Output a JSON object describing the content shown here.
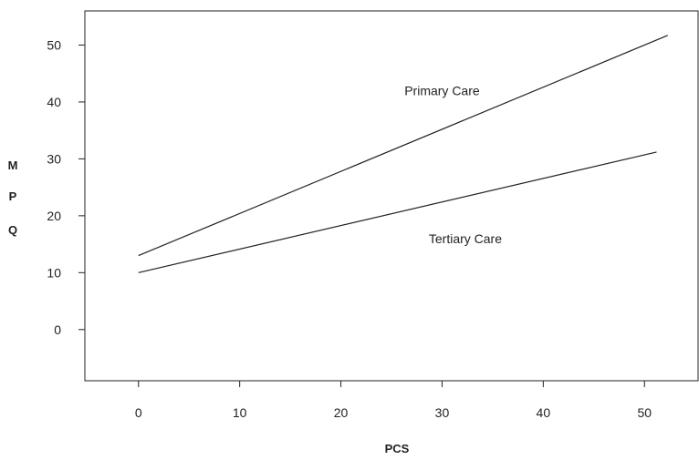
{
  "chart_data": {
    "type": "line",
    "title": "",
    "xlabel": "PCS",
    "ylabel": "M P Q",
    "ylabel_letters": [
      "M",
      "P",
      "Q"
    ],
    "xlim": [
      -5.3,
      55.3
    ],
    "ylim": [
      -9,
      56
    ],
    "x_ticks": [
      0,
      10,
      20,
      30,
      40,
      50
    ],
    "y_ticks": [
      0,
      10,
      20,
      30,
      40,
      50
    ],
    "grid": false,
    "line_color": "#222222",
    "series": [
      {
        "name": "Primary Care",
        "x": [
          0,
          52.3
        ],
        "y": [
          13,
          51.7
        ]
      },
      {
        "name": "Tertiary Care",
        "x": [
          0,
          51.2
        ],
        "y": [
          10,
          31.2
        ]
      }
    ],
    "annotations": [
      {
        "text": "Primary Care",
        "x": 30,
        "y": 42
      },
      {
        "text": "Tertiary Care",
        "x": 32.3,
        "y": 16
      }
    ]
  }
}
